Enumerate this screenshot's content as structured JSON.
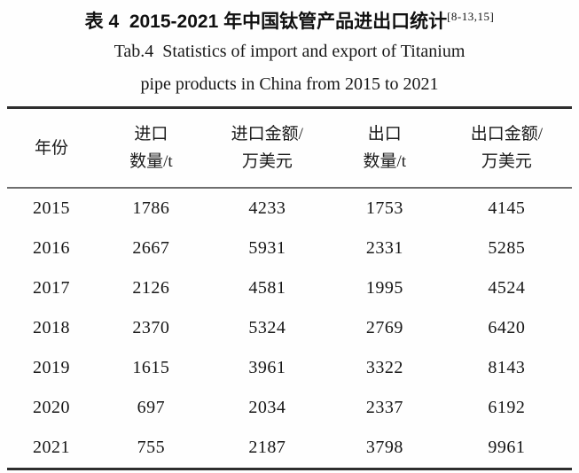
{
  "title": {
    "zh": "表 4  2015-2021 年中国钛管产品进出口统计",
    "ref": "[8-13,15]",
    "en_line1": "Tab.4  Statistics of import and export of Titanium",
    "en_line2": "pipe products in China from 2015 to 2021"
  },
  "table": {
    "headers": [
      {
        "line1": "年份",
        "line2": ""
      },
      {
        "line1": "进口",
        "line2": "数量/t"
      },
      {
        "line1": "进口金额/",
        "line2": "万美元"
      },
      {
        "line1": "出口",
        "line2": "数量/t"
      },
      {
        "line1": "出口金额/",
        "line2": "万美元"
      }
    ],
    "rows": [
      [
        "2015",
        "1786",
        "4233",
        "1753",
        "4145"
      ],
      [
        "2016",
        "2667",
        "5931",
        "2331",
        "5285"
      ],
      [
        "2017",
        "2126",
        "4581",
        "1995",
        "4524"
      ],
      [
        "2018",
        "2370",
        "5324",
        "2769",
        "6420"
      ],
      [
        "2019",
        "1615",
        "3961",
        "3322",
        "8143"
      ],
      [
        "2020",
        "697",
        "2034",
        "2337",
        "6192"
      ],
      [
        "2021",
        "755",
        "2187",
        "3798",
        "9961"
      ]
    ]
  },
  "chart_data": {
    "type": "table",
    "title": "表4 2015-2021年中国钛管产品进出口统计 / Tab.4 Statistics of import and export of Titanium pipe products in China from 2015 to 2021",
    "reference": "[8-13,15]",
    "columns": [
      "年份",
      "进口数量/t",
      "进口金额/万美元",
      "出口数量/t",
      "出口金额/万美元"
    ],
    "rows": [
      [
        2015,
        1786,
        4233,
        1753,
        4145
      ],
      [
        2016,
        2667,
        5931,
        2331,
        5285
      ],
      [
        2017,
        2126,
        4581,
        1995,
        4524
      ],
      [
        2018,
        2370,
        5324,
        2769,
        6420
      ],
      [
        2019,
        1615,
        3961,
        3322,
        8143
      ],
      [
        2020,
        697,
        2034,
        2337,
        6192
      ],
      [
        2021,
        755,
        2187,
        3798,
        9961
      ]
    ]
  }
}
